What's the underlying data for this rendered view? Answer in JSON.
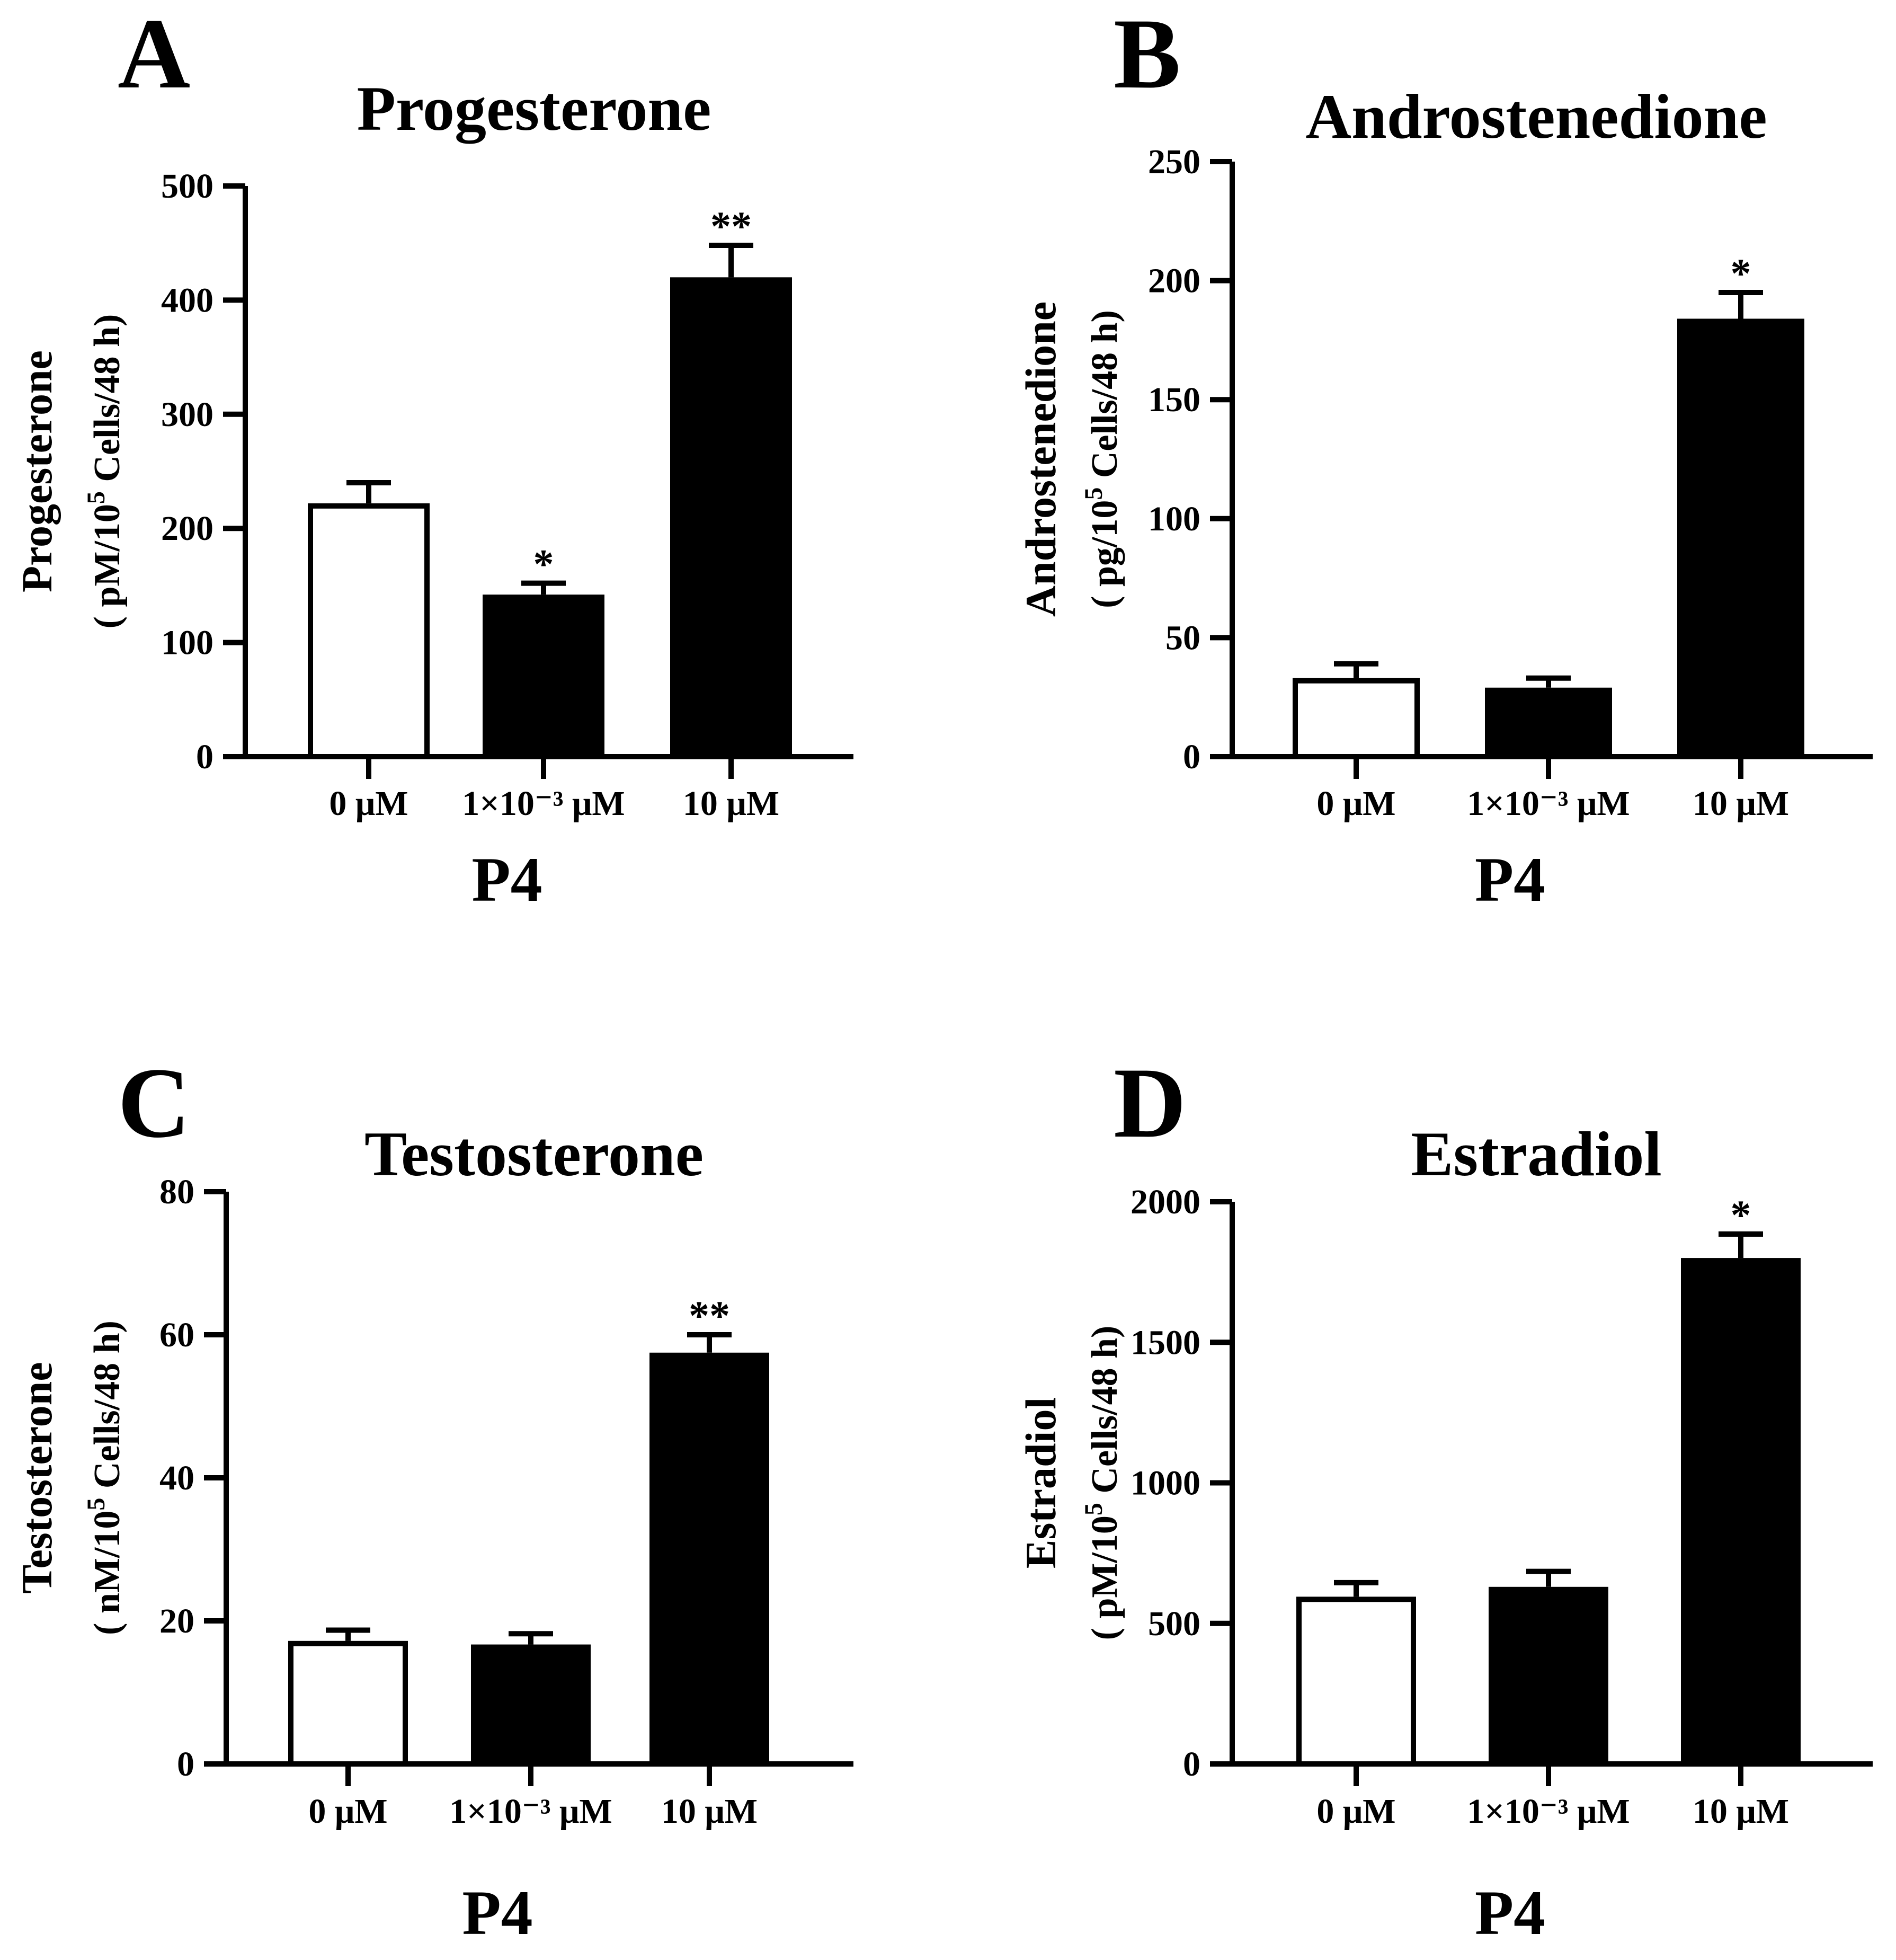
{
  "colors": {
    "axis": "#000000",
    "control_fill": "#ffffff",
    "treated_fill": "#000000"
  },
  "chart_data": [
    {
      "type": "bar",
      "panel_label": "A",
      "title": "Progesterone",
      "ylabel_line1": "Progesterone",
      "ylabel_line2_pre": "( pM/10",
      "ylabel_sup": "5",
      "ylabel_line2_post": " Cells/48 h)",
      "xlabel": "P4",
      "categories": [
        "0 μM",
        "1×10⁻³ μM",
        "10 μM"
      ],
      "values": [
        222,
        142,
        420
      ],
      "errors": [
        18,
        10,
        28
      ],
      "significance": [
        "",
        "*",
        "**"
      ],
      "ylim": [
        0,
        500
      ],
      "yticks": [
        "0",
        "100",
        "200",
        "300",
        "400",
        "500"
      ],
      "fills": [
        "#ffffff",
        "#000000",
        "#000000"
      ]
    },
    {
      "type": "bar",
      "panel_label": "B",
      "title": "Androstenedione",
      "ylabel_line1": "Androstenedione",
      "ylabel_line2_pre": "( pg/10",
      "ylabel_sup": "5",
      "ylabel_line2_post": " Cells/48 h)",
      "xlabel": "P4",
      "categories": [
        "0 μM",
        "1×10⁻³ μM",
        "10 μM"
      ],
      "values": [
        33,
        29,
        184
      ],
      "errors": [
        6,
        4,
        11
      ],
      "significance": [
        "",
        "",
        "*"
      ],
      "ylim": [
        0,
        250
      ],
      "yticks": [
        "0",
        "50",
        "100",
        "150",
        "200",
        "250"
      ],
      "fills": [
        "#ffffff",
        "#000000",
        "#000000"
      ]
    },
    {
      "type": "bar",
      "panel_label": "C",
      "title": "Testosterone",
      "ylabel_line1": "Testosterone",
      "ylabel_line2_pre": "( nM/10",
      "ylabel_sup": "5",
      "ylabel_line2_post": " Cells/48 h)",
      "xlabel": "P4",
      "categories": [
        "0 μM",
        "1×10⁻³ μM",
        "10 μM"
      ],
      "values": [
        17.2,
        16.7,
        57.5
      ],
      "errors": [
        1.5,
        1.5,
        2.5
      ],
      "significance": [
        "",
        "",
        "**"
      ],
      "ylim": [
        0,
        80
      ],
      "yticks": [
        "0",
        "20",
        "40",
        "60",
        "80"
      ],
      "fills": [
        "#ffffff",
        "#000000",
        "#000000"
      ]
    },
    {
      "type": "bar",
      "panel_label": "D",
      "title": "Estradiol",
      "ylabel_line1": "Estradiol",
      "ylabel_line2_pre": "( pM/10",
      "ylabel_sup": "5",
      "ylabel_line2_post": " Cells/48 h)",
      "xlabel": "P4",
      "categories": [
        "0 μM",
        "1×10⁻³ μM",
        "10 μM"
      ],
      "values": [
        595,
        630,
        1800
      ],
      "errors": [
        50,
        55,
        85
      ],
      "significance": [
        "",
        "",
        "*"
      ],
      "ylim": [
        0,
        2000
      ],
      "yticks": [
        "0",
        "500",
        "1000",
        "1500",
        "2000"
      ],
      "fills": [
        "#ffffff",
        "#000000",
        "#000000"
      ]
    }
  ]
}
